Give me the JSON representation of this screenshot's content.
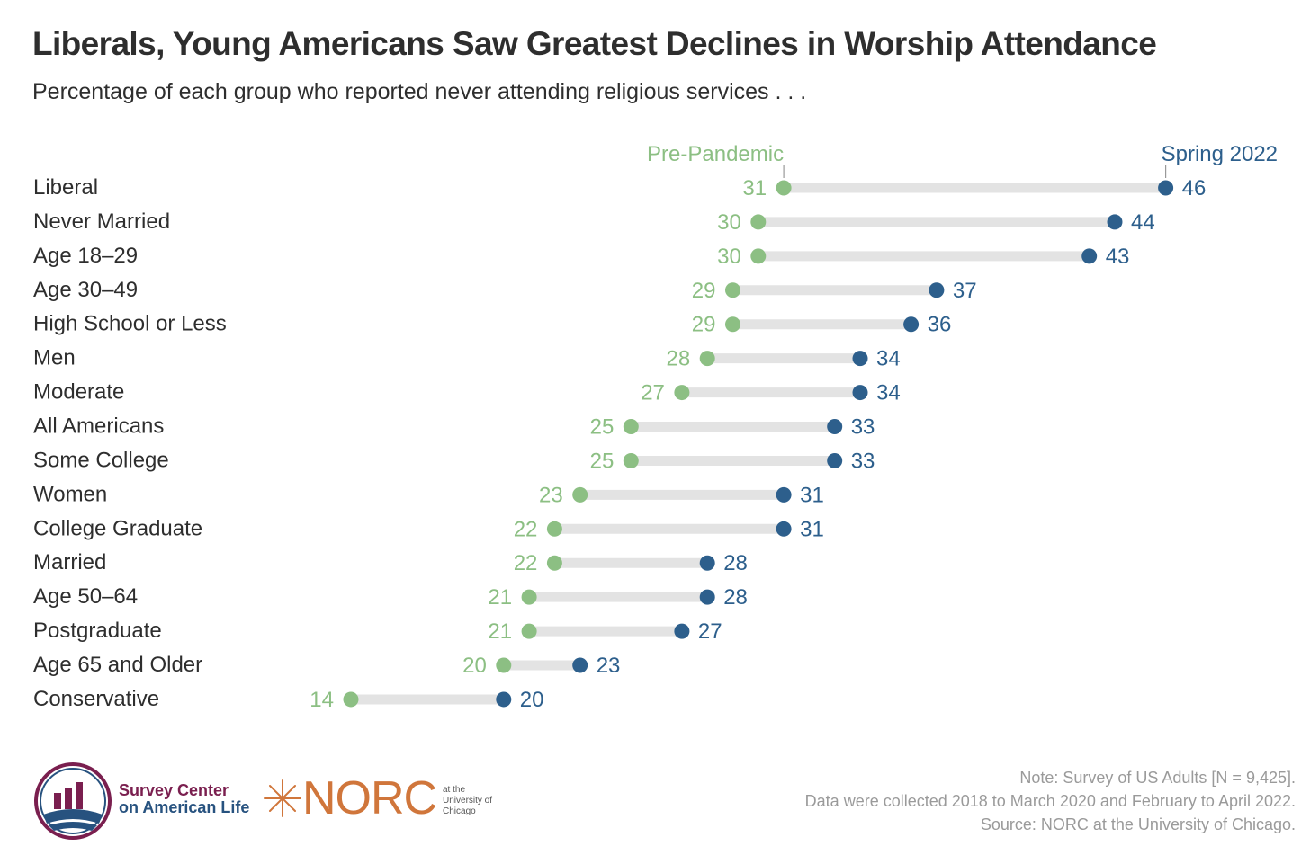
{
  "title": "Liberals, Young Americans Saw Greatest Declines in Worship Attendance",
  "subtitle": "Percentage of each group who reported never attending religious services . . .",
  "chart_data": {
    "type": "dumbbell",
    "series": [
      {
        "name": "Pre-Pandemic",
        "color": "#8cbf83"
      },
      {
        "name": "Spring 2022",
        "color": "#2d5f8c"
      }
    ],
    "categories": [
      "Liberal",
      "Never Married",
      "Age 18–29",
      "Age 30–49",
      "High School or Less",
      "Men",
      "Moderate",
      "All Americans",
      "Some College",
      "Women",
      "College Graduate",
      "Married",
      "Age 50–64",
      "Postgraduate",
      "Age 65 and Older",
      "Conservative"
    ],
    "pre_pandemic": [
      31,
      30,
      30,
      29,
      29,
      28,
      27,
      25,
      25,
      23,
      22,
      22,
      21,
      21,
      20,
      14
    ],
    "spring_2022": [
      46,
      44,
      43,
      37,
      36,
      34,
      34,
      33,
      33,
      31,
      31,
      28,
      28,
      27,
      23,
      20
    ],
    "unit": "percent"
  },
  "logos": {
    "survey_center_line1": "Survey Center",
    "survey_center_line2": "on American Life",
    "norc_word": "NORC",
    "norc_sub": [
      "at the",
      "University of",
      "Chicago"
    ]
  },
  "notes": {
    "line1": "Note: Survey of US Adults [N = 9,425].",
    "line2": "Data were collected 2018 to March 2020 and February to April 2022.",
    "line3": "Source: NORC at the University of Chicago."
  },
  "colors": {
    "pre": "#8cbf83",
    "post": "#2d5f8c",
    "bar": "#e3e3e3",
    "text": "#2e2e2e"
  }
}
